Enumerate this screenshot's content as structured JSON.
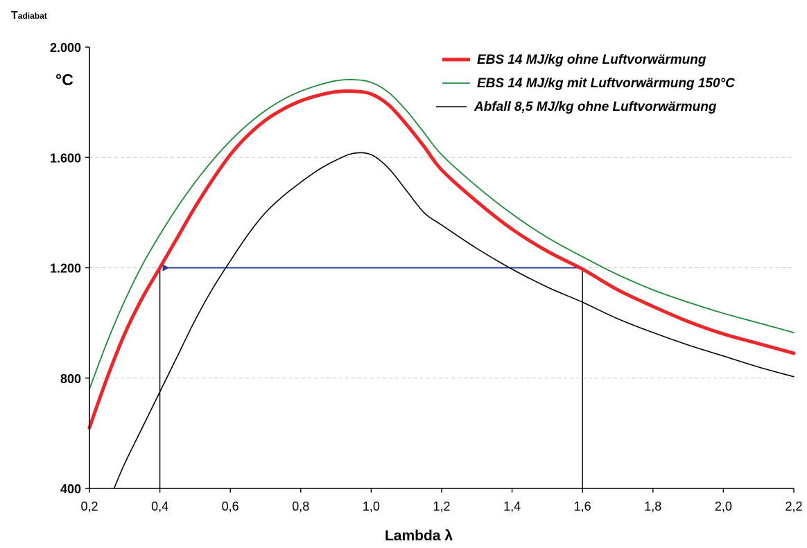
{
  "chart_data": {
    "type": "line",
    "ylabel_main": "T",
    "ylabel_sub": "adiabat",
    "yunit": "°C",
    "xlabel": "Lambda λ",
    "xlim": [
      0.2,
      2.2
    ],
    "ylim": [
      400,
      2000
    ],
    "x_ticks": [
      0.2,
      0.4,
      0.6,
      0.8,
      1.0,
      1.2,
      1.4,
      1.6,
      1.8,
      2.0,
      2.2
    ],
    "x_tick_labels": [
      "0,2",
      "0,4",
      "0,6",
      "0,8",
      "1,0",
      "1,2",
      "1,4",
      "1,6",
      "1,8",
      "2,0",
      "2,2"
    ],
    "y_ticks": [
      400,
      800,
      1200,
      1600,
      2000
    ],
    "y_tick_labels": [
      "400",
      "800",
      "1.200",
      "1.600",
      "2.000"
    ],
    "grid": "horizontal dashed",
    "legend_position": "top-right",
    "series": [
      {
        "name": "EBS 14 MJ/kg ohne Luftvorwärmung",
        "color": "#e8282a",
        "x": [
          0.2,
          0.25,
          0.3,
          0.35,
          0.4,
          0.45,
          0.5,
          0.55,
          0.6,
          0.65,
          0.7,
          0.75,
          0.8,
          0.85,
          0.9,
          0.95,
          1.0,
          1.05,
          1.1,
          1.15,
          1.2,
          1.3,
          1.4,
          1.5,
          1.6,
          1.7,
          1.8,
          1.9,
          2.0,
          2.1,
          2.2
        ],
        "y": [
          620,
          800,
          960,
          1090,
          1200,
          1310,
          1420,
          1520,
          1610,
          1680,
          1735,
          1775,
          1805,
          1825,
          1838,
          1840,
          1830,
          1790,
          1720,
          1640,
          1555,
          1440,
          1340,
          1260,
          1195,
          1120,
          1060,
          1005,
          960,
          925,
          890
        ]
      },
      {
        "name": "EBS 14 MJ/kg mit Luftvorwärmung 150°C",
        "color": "#1e8a3a",
        "x": [
          0.2,
          0.25,
          0.3,
          0.35,
          0.4,
          0.45,
          0.5,
          0.55,
          0.6,
          0.65,
          0.7,
          0.75,
          0.8,
          0.85,
          0.9,
          0.95,
          1.0,
          1.05,
          1.1,
          1.15,
          1.2,
          1.3,
          1.4,
          1.5,
          1.6,
          1.7,
          1.8,
          1.9,
          2.0,
          2.1,
          2.2
        ],
        "y": [
          760,
          930,
          1080,
          1210,
          1320,
          1420,
          1510,
          1590,
          1660,
          1720,
          1770,
          1810,
          1840,
          1862,
          1878,
          1882,
          1872,
          1835,
          1770,
          1690,
          1610,
          1495,
          1395,
          1310,
          1240,
          1175,
          1120,
          1075,
          1035,
          1000,
          965
        ]
      },
      {
        "name": "Abfall 8,5 MJ/kg ohne Luftvorwärmung",
        "color": "#000000",
        "x": [
          0.27,
          0.3,
          0.35,
          0.4,
          0.45,
          0.5,
          0.55,
          0.6,
          0.65,
          0.7,
          0.75,
          0.8,
          0.85,
          0.9,
          0.95,
          1.0,
          1.05,
          1.1,
          1.15,
          1.2,
          1.3,
          1.4,
          1.5,
          1.6,
          1.7,
          1.8,
          1.9,
          2.0,
          2.1,
          2.2
        ],
        "y": [
          400,
          490,
          620,
          750,
          880,
          1010,
          1125,
          1225,
          1320,
          1400,
          1460,
          1510,
          1555,
          1590,
          1615,
          1610,
          1560,
          1480,
          1400,
          1355,
          1270,
          1195,
          1130,
          1075,
          1015,
          965,
          920,
          880,
          840,
          805
        ]
      }
    ],
    "annotations": {
      "arrow": {
        "color": "#2b3f9e",
        "from": [
          1.6,
          1200
        ],
        "to": [
          0.4,
          1200
        ]
      },
      "guide_lines": [
        {
          "color": "#000000",
          "from": [
            0.4,
            400
          ],
          "to": [
            0.4,
            1200
          ]
        },
        {
          "color": "#000000",
          "from": [
            1.6,
            400
          ],
          "to": [
            1.6,
            1200
          ]
        }
      ]
    }
  }
}
